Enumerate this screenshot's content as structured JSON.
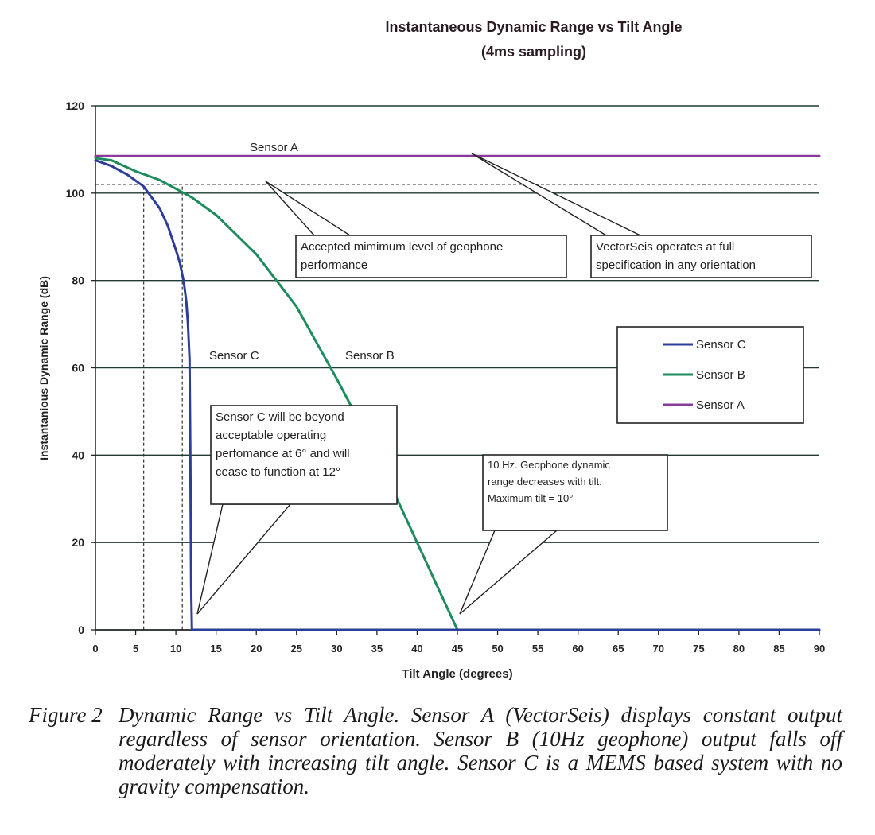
{
  "chart_data": {
    "type": "line",
    "title": "Instantaneous Dynamic Range vs Tilt Angle",
    "subtitle": "(4ms sampling)",
    "xlabel": "Tilt Angle (degrees)",
    "ylabel": "Instantanious Dynamic Range (dB)",
    "xlim": [
      0,
      90
    ],
    "ylim": [
      0,
      120
    ],
    "x_ticks": [
      "0",
      "5",
      "10",
      "15",
      "20",
      "25",
      "30",
      "35",
      "40",
      "45",
      "50",
      "55",
      "60",
      "65",
      "70",
      "75",
      "80",
      "85",
      "90"
    ],
    "y_ticks": [
      "0",
      "20",
      "40",
      "60",
      "80",
      "100",
      "120"
    ],
    "grid": "horizontal",
    "legend_position": "right",
    "series": [
      {
        "name": "Sensor C",
        "color": "#2c3e9a",
        "x": [
          0,
          2,
          4,
          6,
          8,
          9,
          10,
          10.5,
          11,
          11.3,
          11.5,
          11.7,
          11.8,
          11.9,
          12,
          15,
          20,
          30,
          40,
          50,
          60,
          70,
          80,
          90
        ],
        "y": [
          107.5,
          106.2,
          104.2,
          101.5,
          96.5,
          92.5,
          87,
          84,
          79.5,
          75,
          70,
          62,
          40,
          10,
          0,
          0,
          0,
          0,
          0,
          0,
          0,
          0,
          0,
          0
        ]
      },
      {
        "name": "Sensor B",
        "color": "#1e8b5c",
        "x": [
          0,
          2,
          5,
          8,
          10,
          12,
          15,
          20,
          25,
          30,
          35,
          40,
          43,
          45,
          50,
          60,
          70,
          80,
          90
        ],
        "y": [
          108,
          107.5,
          105,
          103,
          101,
          99,
          95,
          86,
          74,
          57.5,
          40,
          20,
          8,
          0,
          0,
          0,
          0,
          0,
          0
        ]
      },
      {
        "name": "Sensor A",
        "color": "#8a3a9a",
        "x": [
          0,
          90
        ],
        "y": [
          108.5,
          108.5
        ]
      }
    ],
    "reference_lines": [
      {
        "kind": "horizontal",
        "y": 102,
        "style": "dashed"
      },
      {
        "kind": "vertical",
        "x": 6,
        "y_top": 101.5,
        "style": "dashed"
      },
      {
        "kind": "vertical",
        "x": 10.8,
        "y_top": 101.5,
        "style": "dashed"
      }
    ],
    "annotations": {
      "sensor_a_label": "Sensor A",
      "sensor_b_label": "Sensor B",
      "sensor_c_label": "Sensor C",
      "callout_min_level": [
        "Accepted mimimum level of geophone",
        "performance"
      ],
      "callout_vectorseis": [
        "VectorSeis operates at full",
        "specification in any orientation"
      ],
      "callout_sensor_c": [
        "Sensor C will be beyond",
        "acceptable operating",
        "perfomance at 6° and will",
        "cease to function at 12°"
      ],
      "callout_geophone": [
        "10 Hz. Geophone dynamic",
        "range decreases with tilt.",
        "Maximum tilt = 10°"
      ]
    }
  },
  "caption": {
    "lead": "Figure 2",
    "text": "Dynamic Range vs Tilt Angle. Sensor A (VectorSeis) displays constant output regardless of sensor orientation. Sensor B (10Hz geophone) output falls off moderately with increasing tilt angle. Sensor C is a MEMS based system with no gravity compensation."
  }
}
